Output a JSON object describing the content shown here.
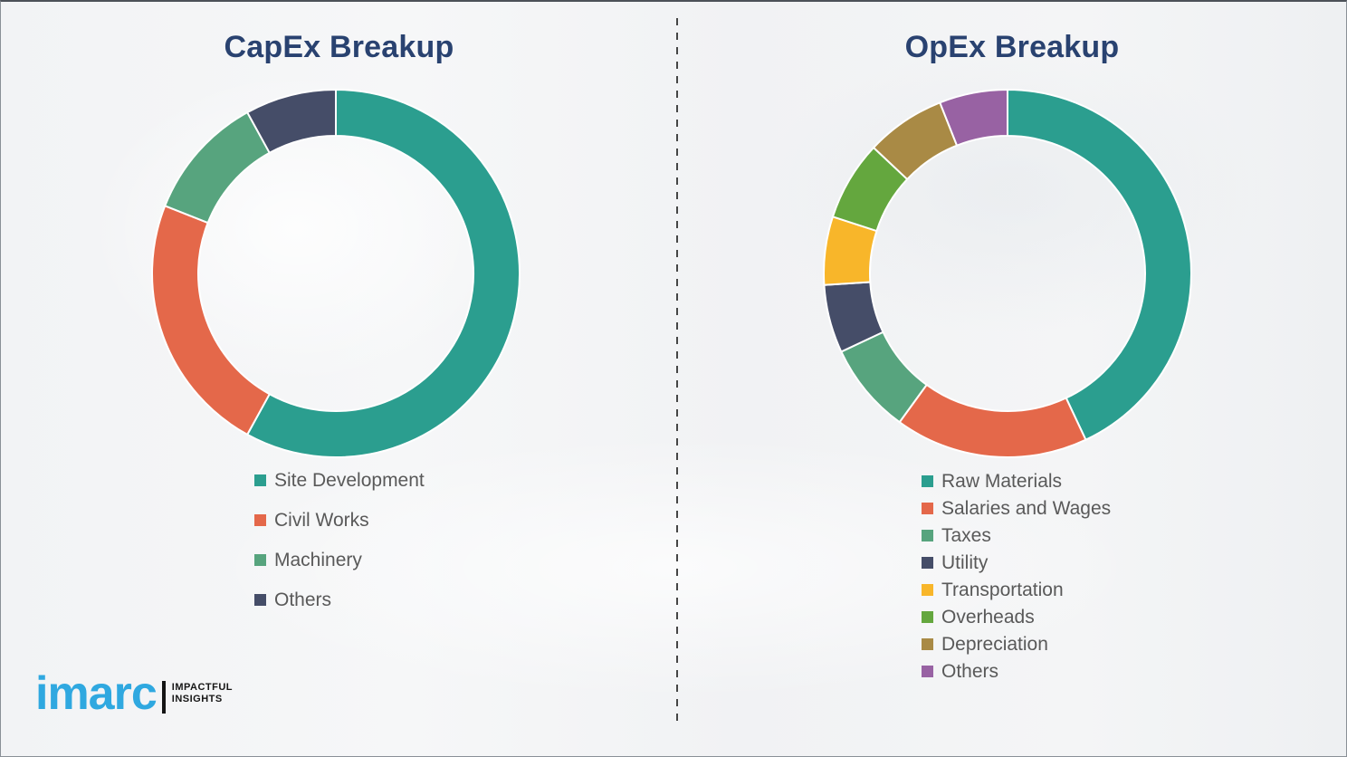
{
  "colors": {
    "title_text": "#294270",
    "legend_text": "#595959",
    "divider": "#454545",
    "background": "#f3f4f6",
    "border": "#8a9097",
    "logo_blue": "#2fa8e0",
    "logo_black": "#141414"
  },
  "chart_data": [
    {
      "type": "pie",
      "subtype": "donut",
      "title": "CapEx Breakup",
      "labels": [
        "Site Development",
        "Civil Works",
        "Machinery",
        "Others"
      ],
      "values": [
        58,
        23,
        11,
        8
      ],
      "unit": "percent (estimated from arc angles, no data labels shown)",
      "colors": [
        "#2b9e8f",
        "#e4684a",
        "#57a47e",
        "#454d68"
      ],
      "start_angle_deg": 0,
      "direction": "clockwise",
      "legend_position": "below-left",
      "grid": false
    },
    {
      "type": "pie",
      "subtype": "donut",
      "title": "OpEx Breakup",
      "labels": [
        "Raw Materials",
        "Salaries and Wages",
        "Taxes",
        "Utility",
        "Transportation",
        "Overheads",
        "Depreciation",
        "Others"
      ],
      "values": [
        43,
        17,
        8,
        6,
        6,
        7,
        7,
        6
      ],
      "unit": "percent (estimated from arc angles, no data labels shown)",
      "colors": [
        "#2b9e8f",
        "#e4684a",
        "#57a47e",
        "#454d68",
        "#f8b62a",
        "#64a73e",
        "#a98a45",
        "#9862a3"
      ],
      "start_angle_deg": 0,
      "direction": "clockwise",
      "legend_position": "below-left",
      "grid": false
    }
  ],
  "logo": {
    "wordmark": "imarc",
    "tagline_line1": "IMPACTFUL",
    "tagline_line2": "INSIGHTS"
  }
}
